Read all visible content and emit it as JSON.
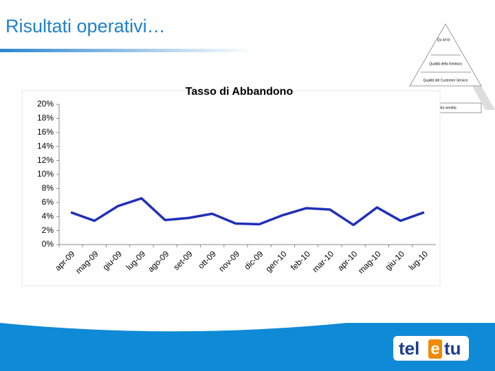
{
  "slide_title": "Risultati operativi…",
  "pyramid": [
    "Qu ali tà",
    "Qualità della fornitura",
    "Qualità del Customer Service",
    "Qualità della vendita"
  ],
  "logo": [
    "tel",
    "e",
    "tu"
  ],
  "chart_data": {
    "type": "line",
    "title": "Tasso di Abbandono",
    "categories": [
      "apr-09",
      "mag-09",
      "giu-09",
      "lug-09",
      "ago-09",
      "set-09",
      "ott-09",
      "nov-09",
      "dic-09",
      "gen-10",
      "feb-10",
      "mar-10",
      "apr-10",
      "mag-10",
      "giu-10",
      "lug-10"
    ],
    "values": [
      4.6,
      3.4,
      5.5,
      6.6,
      3.5,
      3.8,
      4.4,
      3.0,
      2.9,
      4.2,
      5.2,
      5.0,
      2.8,
      5.3,
      3.4,
      4.6
    ],
    "color": "#1f2fb8",
    "ylim": [
      0,
      20
    ],
    "yticks": [
      {
        "value": 0,
        "label": "0%"
      },
      {
        "value": 2,
        "label": "2%"
      },
      {
        "value": 4,
        "label": "4%"
      },
      {
        "value": 6,
        "label": "6%"
      },
      {
        "value": 8,
        "label": "8%"
      },
      {
        "value": 10,
        "label": "10%"
      },
      {
        "value": 12,
        "label": "12%"
      },
      {
        "value": 14,
        "label": "14%"
      },
      {
        "value": 16,
        "label": "16%"
      },
      {
        "value": 18,
        "label": "18%"
      },
      {
        "value": 20,
        "label": "20%"
      }
    ],
    "grid": false
  }
}
